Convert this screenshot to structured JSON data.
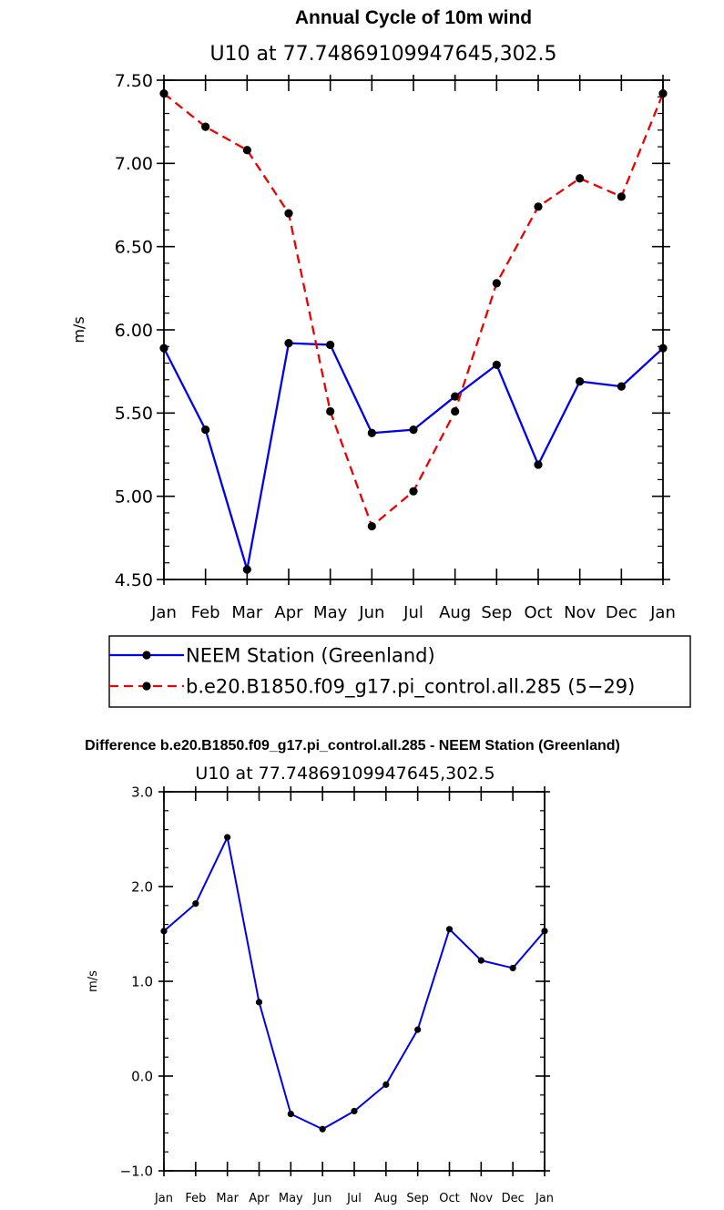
{
  "chart_data": [
    {
      "type": "line",
      "title": "Annual Cycle of 10m wind",
      "subtitle": "U10 at 77.74869109947645,302.5",
      "xlabel": "",
      "ylabel": "m/s",
      "categories": [
        "Jan",
        "Feb",
        "Mar",
        "Apr",
        "May",
        "Jun",
        "Jul",
        "Aug",
        "Sep",
        "Oct",
        "Nov",
        "Dec",
        "Jan"
      ],
      "ylim": [
        4.5,
        7.5
      ],
      "yticks": [
        "4.50",
        "5.00",
        "5.50",
        "6.00",
        "6.50",
        "7.00",
        "7.50"
      ],
      "grid": false,
      "legend_position": "below",
      "series": [
        {
          "name": "NEEM Station (Greenland)",
          "color": "#0000ee",
          "dash": "solid",
          "values": [
            5.89,
            5.4,
            4.56,
            5.92,
            5.91,
            5.38,
            5.4,
            5.6,
            5.79,
            5.19,
            5.69,
            5.66,
            5.89
          ]
        },
        {
          "name": "b.e20.B1850.f09_g17.pi_control.all.285 (5−29)",
          "color": "#ee0000",
          "dash": "dashed",
          "values": [
            7.42,
            7.22,
            7.08,
            6.7,
            5.51,
            4.82,
            5.03,
            5.51,
            6.28,
            6.74,
            6.91,
            6.8,
            7.42
          ]
        }
      ]
    },
    {
      "type": "line",
      "title": "Difference b.e20.B1850.f09_g17.pi_control.all.285 - NEEM Station (Greenland)",
      "subtitle": "U10 at 77.74869109947645,302.5",
      "xlabel": "",
      "ylabel": "m/s",
      "categories": [
        "Jan",
        "Feb",
        "Mar",
        "Apr",
        "May",
        "Jun",
        "Jul",
        "Aug",
        "Sep",
        "Oct",
        "Nov",
        "Dec",
        "Jan"
      ],
      "ylim": [
        -1.0,
        3.0
      ],
      "yticks": [
        "−1.0",
        "0.0",
        "1.0",
        "2.0",
        "3.0"
      ],
      "grid": false,
      "series": [
        {
          "name": "Difference",
          "color": "#0000ee",
          "dash": "solid",
          "values": [
            1.53,
            1.82,
            2.52,
            0.78,
            -0.4,
            -0.56,
            -0.37,
            -0.09,
            0.49,
            1.55,
            1.22,
            1.14,
            1.53
          ]
        }
      ]
    }
  ]
}
